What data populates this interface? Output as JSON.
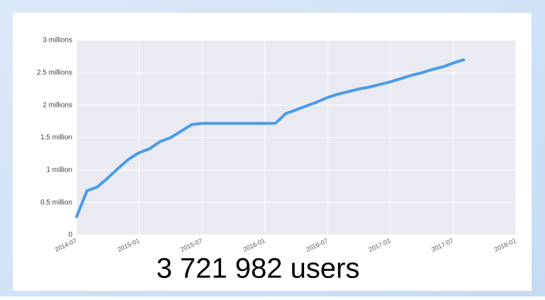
{
  "chart_data": {
    "type": "line",
    "annotation": "3 721 982 users",
    "x": [
      "2014-07",
      "2014-08",
      "2014-09",
      "2014-10",
      "2014-11",
      "2014-12",
      "2015-01",
      "2015-02",
      "2015-03",
      "2015-04",
      "2015-05",
      "2015-06",
      "2015-07",
      "2015-08",
      "2015-09",
      "2015-10",
      "2015-11",
      "2015-12",
      "2016-01",
      "2016-02",
      "2016-03",
      "2016-04",
      "2016-05",
      "2016-06",
      "2016-07",
      "2016-08",
      "2016-09",
      "2016-10",
      "2016-11",
      "2016-12",
      "2017-01",
      "2017-02",
      "2017-03",
      "2017-04",
      "2017-05",
      "2017-06",
      "2017-07",
      "2017-08"
    ],
    "series": [
      {
        "color": "#4a9be8",
        "values": [
          0.28,
          0.68,
          0.74,
          0.88,
          1.03,
          1.17,
          1.27,
          1.33,
          1.44,
          1.5,
          1.6,
          1.7,
          1.72,
          1.72,
          1.72,
          1.72,
          1.72,
          1.72,
          1.72,
          1.72,
          1.87,
          1.93,
          1.99,
          2.05,
          2.12,
          2.17,
          2.21,
          2.25,
          2.28,
          2.32,
          2.36,
          2.41,
          2.46,
          2.5,
          2.55,
          2.59,
          2.65,
          2.7
        ]
      }
    ],
    "xlim": [
      "2014-07",
      "2018-01"
    ],
    "xticks": [
      "2014-07",
      "2015-01",
      "2015-07",
      "2016-01",
      "2016-07",
      "2017-01",
      "2017-07",
      "2018-01"
    ],
    "ylim": [
      0,
      3
    ],
    "yticks": [
      0,
      {
        "value": 0.5,
        "label": "0.5 million"
      },
      {
        "value": 1,
        "label": "1 million"
      },
      {
        "value": 1.5,
        "label": "1.5 million"
      },
      {
        "value": 2,
        "label": "2 millions"
      },
      {
        "value": 2.5,
        "label": "2.5 millions"
      },
      {
        "value": 3,
        "label": "3 millions"
      }
    ],
    "grid": true
  }
}
